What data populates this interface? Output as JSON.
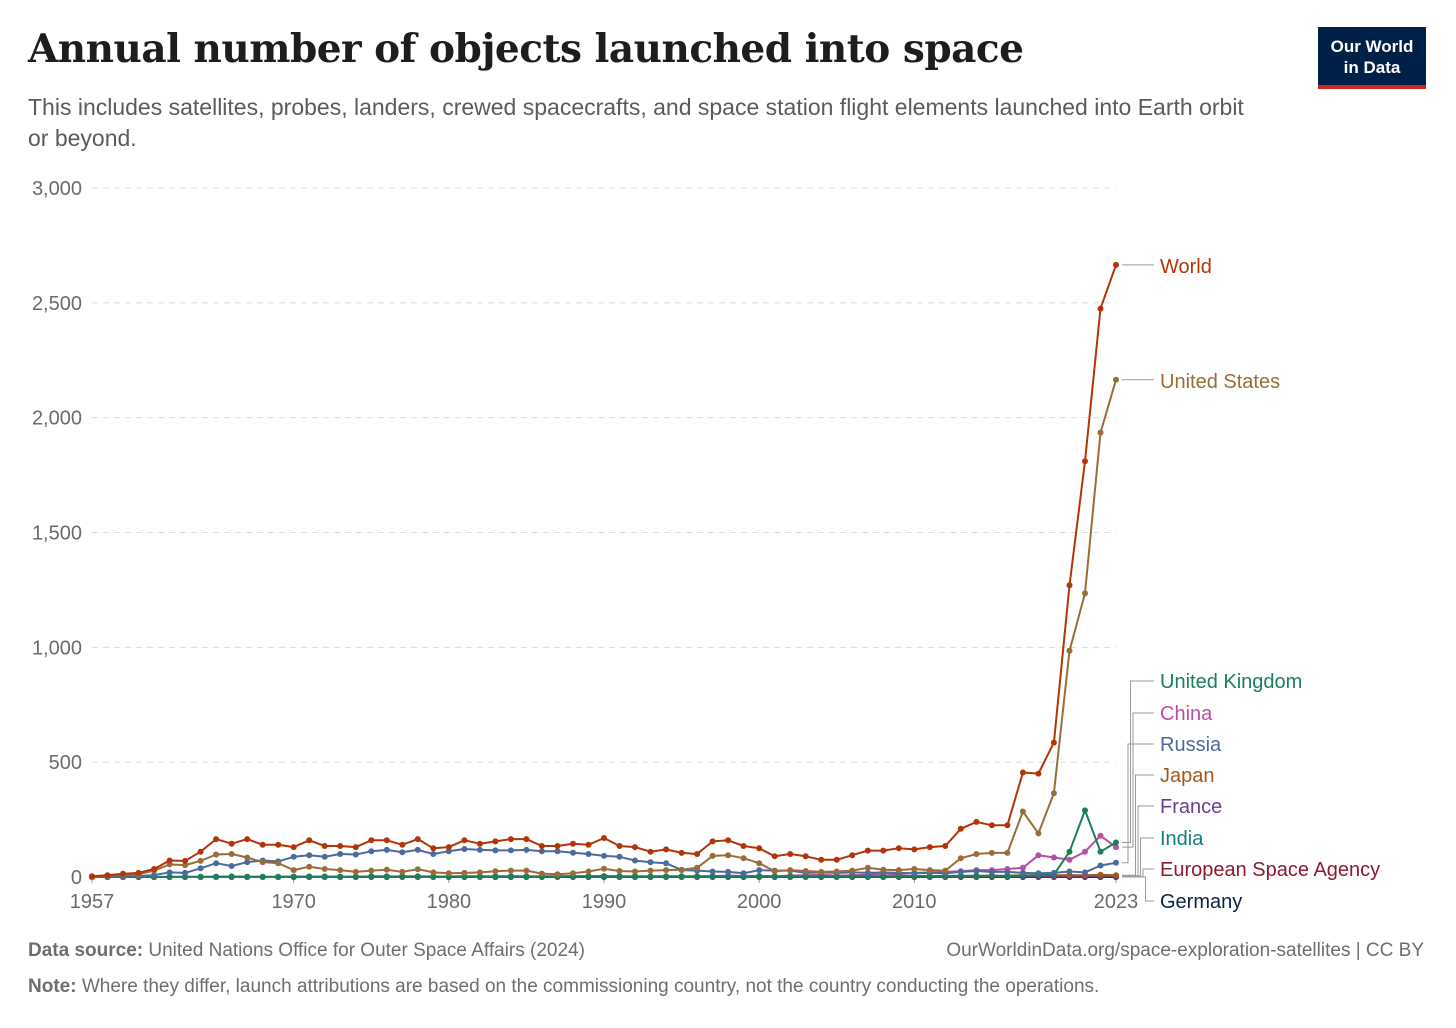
{
  "header": {
    "title": "Annual number of objects launched into space",
    "subtitle": "This includes satellites, probes, landers, crewed spacecrafts, and space station flight elements launched into Earth orbit or beyond.",
    "logo_line1": "Our World",
    "logo_line2": "in Data"
  },
  "footer": {
    "source_label": "Data source:",
    "source_text": "United Nations Office for Outer Space Affairs (2024)",
    "url_text": "OurWorldinData.org/space-exploration-satellites | CC BY",
    "note_label": "Note:",
    "note_text": "Where they differ, launch attributions are based on the commissioning country, not the country conducting the operations."
  },
  "colors": {
    "World": "#b13507",
    "United States": "#9a6d38",
    "United Kingdom": "#1a7f5a",
    "China": "#b84ea6",
    "Russia": "#4c6a9c",
    "Japan": "#a2581e",
    "France": "#6b3d8e",
    "India": "#13807c",
    "European Space Agency": "#8c1b2b",
    "Germany": "#0c2148"
  },
  "chart_data": {
    "type": "line",
    "title": "Annual number of objects launched into space",
    "xlabel": "",
    "ylabel": "",
    "xlim": [
      1957,
      2023
    ],
    "ylim": [
      0,
      3000
    ],
    "x_ticks": [
      "1957",
      "1970",
      "1980",
      "1990",
      "2000",
      "2010",
      "2023"
    ],
    "y_ticks": [
      "0",
      "500",
      "1,000",
      "1,500",
      "2,000",
      "2,500",
      "3,000"
    ],
    "grid": "horizontal dashed",
    "legend": "right, line-end labels",
    "x": [
      1957,
      1958,
      1959,
      1960,
      1961,
      1962,
      1963,
      1964,
      1965,
      1966,
      1967,
      1968,
      1969,
      1970,
      1971,
      1972,
      1973,
      1974,
      1975,
      1976,
      1977,
      1978,
      1979,
      1980,
      1981,
      1982,
      1983,
      1984,
      1985,
      1986,
      1987,
      1988,
      1989,
      1990,
      1991,
      1992,
      1993,
      1994,
      1995,
      1996,
      1997,
      1998,
      1999,
      2000,
      2001,
      2002,
      2003,
      2004,
      2005,
      2006,
      2007,
      2008,
      2009,
      2010,
      2011,
      2012,
      2013,
      2014,
      2015,
      2016,
      2017,
      2018,
      2019,
      2020,
      2021,
      2022,
      2023
    ],
    "series": [
      {
        "name": "World",
        "values": [
          3,
          8,
          14,
          18,
          35,
          72,
          70,
          110,
          165,
          145,
          165,
          140,
          140,
          130,
          160,
          135,
          135,
          130,
          160,
          160,
          140,
          165,
          125,
          130,
          160,
          145,
          155,
          165,
          165,
          135,
          135,
          145,
          140,
          170,
          135,
          130,
          110,
          120,
          105,
          100,
          155,
          160,
          135,
          125,
          90,
          100,
          90,
          75,
          75,
          95,
          115,
          115,
          125,
          120,
          130,
          135,
          210,
          240,
          225,
          225,
          455,
          450,
          585,
          1270,
          1810,
          2475,
          2665
        ]
      },
      {
        "name": "United States",
        "values": [
          0,
          6,
          10,
          12,
          28,
          55,
          52,
          70,
          98,
          100,
          85,
          65,
          60,
          30,
          45,
          35,
          30,
          22,
          28,
          32,
          22,
          34,
          20,
          16,
          18,
          20,
          25,
          28,
          28,
          15,
          12,
          16,
          24,
          36,
          26,
          24,
          28,
          30,
          32,
          40,
          92,
          95,
          82,
          60,
          25,
          30,
          26,
          22,
          24,
          28,
          40,
          32,
          30,
          35,
          30,
          28,
          82,
          100,
          105,
          105,
          285,
          190,
          365,
          985,
          1235,
          1935,
          2165
        ]
      },
      {
        "name": "Russia",
        "values": [
          2,
          1,
          3,
          5,
          8,
          20,
          18,
          38,
          60,
          48,
          65,
          72,
          68,
          88,
          95,
          88,
          100,
          98,
          112,
          118,
          108,
          118,
          100,
          112,
          122,
          118,
          116,
          116,
          118,
          112,
          112,
          106,
          100,
          92,
          88,
          72,
          64,
          60,
          30,
          28,
          24,
          22,
          16,
          30,
          28,
          28,
          18,
          20,
          18,
          20,
          18,
          20,
          18,
          16,
          18,
          16,
          22,
          26,
          22,
          22,
          18,
          16,
          18,
          24,
          20,
          50,
          62
        ]
      },
      {
        "name": "United Kingdom",
        "values": [
          0,
          0,
          0,
          0,
          0,
          1,
          1,
          1,
          1,
          1,
          1,
          1,
          1,
          1,
          1,
          2,
          1,
          1,
          2,
          1,
          1,
          2,
          1,
          1,
          2,
          1,
          1,
          2,
          1,
          1,
          1,
          2,
          1,
          2,
          2,
          2,
          1,
          1,
          2,
          1,
          2,
          1,
          2,
          2,
          1,
          2,
          2,
          2,
          2,
          3,
          3,
          3,
          3,
          5,
          4,
          5,
          5,
          5,
          6,
          4,
          6,
          8,
          10,
          110,
          290,
          110,
          150
        ]
      },
      {
        "name": "China",
        "values": [
          0,
          0,
          0,
          0,
          0,
          0,
          0,
          0,
          0,
          0,
          0,
          0,
          0,
          1,
          1,
          0,
          0,
          0,
          3,
          3,
          1,
          1,
          1,
          2,
          3,
          1,
          2,
          3,
          2,
          2,
          2,
          3,
          2,
          4,
          2,
          2,
          2,
          3,
          2,
          3,
          4,
          6,
          5,
          5,
          4,
          6,
          8,
          10,
          6,
          8,
          10,
          15,
          12,
          18,
          20,
          22,
          25,
          30,
          30,
          35,
          40,
          95,
          85,
          75,
          110,
          180,
          130
        ]
      },
      {
        "name": "Japan",
        "values": [
          0,
          0,
          0,
          0,
          0,
          0,
          0,
          0,
          0,
          0,
          0,
          0,
          0,
          1,
          2,
          1,
          1,
          1,
          2,
          2,
          3,
          3,
          2,
          2,
          3,
          3,
          3,
          3,
          3,
          3,
          4,
          4,
          4,
          4,
          3,
          3,
          3,
          3,
          3,
          3,
          3,
          3,
          3,
          3,
          3,
          3,
          3,
          3,
          3,
          4,
          3,
          3,
          3,
          4,
          4,
          4,
          5,
          5,
          5,
          6,
          8,
          8,
          8,
          8,
          8,
          10,
          8
        ]
      },
      {
        "name": "France",
        "values": [
          0,
          0,
          0,
          0,
          0,
          0,
          0,
          0,
          1,
          2,
          1,
          0,
          0,
          1,
          1,
          0,
          0,
          0,
          2,
          0,
          1,
          0,
          0,
          0,
          1,
          1,
          0,
          1,
          1,
          1,
          1,
          1,
          1,
          1,
          1,
          1,
          1,
          1,
          1,
          1,
          1,
          1,
          1,
          1,
          1,
          1,
          1,
          1,
          1,
          1,
          1,
          1,
          1,
          1,
          1,
          1,
          1,
          2,
          2,
          2,
          2,
          3,
          4,
          4,
          4,
          6,
          6
        ]
      },
      {
        "name": "India",
        "values": [
          0,
          0,
          0,
          0,
          0,
          0,
          0,
          0,
          0,
          0,
          0,
          0,
          0,
          0,
          0,
          0,
          0,
          0,
          1,
          0,
          0,
          1,
          1,
          1,
          1,
          1,
          2,
          0,
          0,
          0,
          1,
          1,
          0,
          0,
          1,
          1,
          1,
          1,
          1,
          1,
          1,
          1,
          1,
          1,
          1,
          1,
          1,
          1,
          1,
          2,
          2,
          3,
          2,
          2,
          3,
          2,
          3,
          3,
          4,
          4,
          5,
          5,
          6,
          8,
          6,
          5,
          5
        ]
      },
      {
        "name": "European Space Agency",
        "values": [
          0,
          0,
          0,
          0,
          0,
          0,
          0,
          0,
          0,
          0,
          0,
          0,
          0,
          0,
          0,
          0,
          0,
          0,
          2,
          1,
          1,
          1,
          1,
          1,
          1,
          1,
          1,
          1,
          1,
          1,
          1,
          1,
          1,
          1,
          1,
          1,
          1,
          1,
          1,
          1,
          1,
          1,
          1,
          1,
          1,
          1,
          1,
          1,
          1,
          1,
          1,
          1,
          1,
          1,
          1,
          1,
          1,
          1,
          1,
          1,
          1,
          1,
          1,
          1,
          1,
          1,
          1
        ]
      },
      {
        "name": "Germany",
        "values": [
          0,
          0,
          0,
          0,
          0,
          0,
          0,
          0,
          0,
          0,
          0,
          0,
          0,
          0,
          0,
          0,
          0,
          0,
          0,
          0,
          0,
          0,
          0,
          0,
          0,
          0,
          0,
          0,
          0,
          0,
          0,
          0,
          0,
          0,
          0,
          0,
          0,
          0,
          0,
          0,
          0,
          0,
          0,
          0,
          0,
          0,
          0,
          0,
          0,
          0,
          0,
          0,
          0,
          0,
          0,
          0,
          0,
          0,
          0,
          0,
          0,
          0,
          0,
          0,
          0,
          0,
          0
        ]
      }
    ]
  }
}
